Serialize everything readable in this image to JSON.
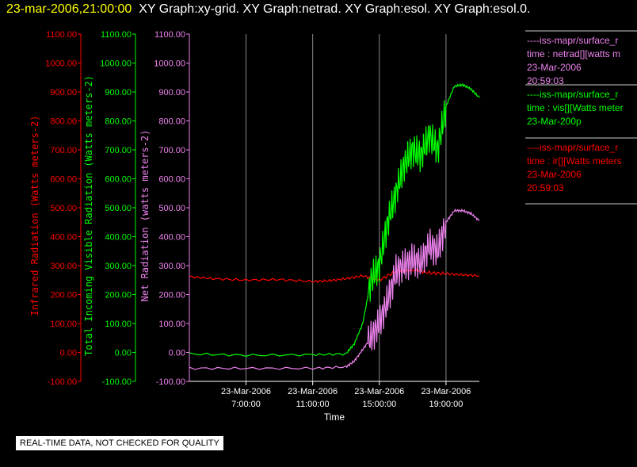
{
  "title": {
    "timestamp": "23-mar-2006,21:00:00",
    "graphs": "XY Graph:xy-grid.  XY Graph:netrad.  XY Graph:esol.  XY Graph:esol.0."
  },
  "colors": {
    "red": "#ff0000",
    "green": "#00ff00",
    "violet": "#ee82ee",
    "grid": "#ffffff"
  },
  "chart_data": {
    "type": "line",
    "xlabel": "Time",
    "x_ticks": [
      {
        "line1": "23-Mar-2006",
        "line2": "7:00:00",
        "hour": 7
      },
      {
        "line1": "23-Mar-2006",
        "line2": "11:00:00",
        "hour": 11
      },
      {
        "line1": "23-Mar-2006",
        "line2": "15:00:00",
        "hour": 15
      },
      {
        "line1": "23-Mar-2006",
        "line2": "19:00:00",
        "hour": 19
      }
    ],
    "xlim_hours": [
      3.6,
      21.0
    ],
    "y_axes": [
      {
        "label": "Infrared Radiation (Watts meters-2)",
        "color": "#ff0000",
        "ylim": [
          -100,
          1100
        ]
      },
      {
        "label": "Total Incoming Visible Radiation (Watts meters-2)",
        "color": "#00ff00",
        "ylim": [
          -100,
          1100
        ]
      },
      {
        "label": "Net Radiation (watts meters-2)",
        "color": "#ee82ee",
        "ylim": [
          -100,
          1100
        ]
      }
    ],
    "y_ticks": [
      "1100.00",
      "1000.00",
      "900.00",
      "800.00",
      "700.00",
      "600.00",
      "500.00",
      "400.00",
      "300.00",
      "200.00",
      "100.00",
      "0.00",
      "-100.00"
    ],
    "y_tick_values": [
      1100,
      1000,
      900,
      800,
      700,
      600,
      500,
      400,
      300,
      200,
      100,
      0,
      -100
    ],
    "series": [
      {
        "color": "#ff0000",
        "x": [
          3.6,
          5,
          7,
          9,
          11,
          12,
          13,
          14,
          15,
          16,
          17,
          18,
          19,
          20,
          21
        ],
        "y": [
          262,
          255,
          250,
          252,
          245,
          248,
          255,
          265,
          250,
          280,
          285,
          275,
          272,
          268,
          265
        ]
      },
      {
        "color": "#00ff00",
        "x": [
          3.6,
          7,
          11,
          13,
          13.5,
          14,
          14.5,
          15,
          15.5,
          16,
          16.5,
          17,
          17.5,
          18,
          18.5,
          19,
          19.5,
          20,
          20.5,
          21
        ],
        "y": [
          -5,
          -10,
          -8,
          -5,
          30,
          100,
          250,
          300,
          450,
          550,
          650,
          700,
          680,
          750,
          700,
          850,
          920,
          925,
          910,
          880
        ]
      },
      {
        "color": "#ee82ee",
        "x": [
          3.6,
          7,
          11,
          13,
          13.5,
          14,
          14.5,
          15,
          15.5,
          16,
          16.5,
          17,
          17.5,
          18,
          18.5,
          19,
          19.5,
          20,
          20.5,
          21
        ],
        "y": [
          -55,
          -55,
          -55,
          -50,
          -30,
          10,
          50,
          100,
          180,
          280,
          300,
          320,
          310,
          370,
          350,
          450,
          490,
          490,
          480,
          455
        ]
      }
    ]
  },
  "legend": [
    {
      "color": "#ee82ee",
      "lines": [
        "----iss-mapr/surface_r",
        "time : netrad[][watts m",
        "23-Mar-2006",
        "20:59:03"
      ]
    },
    {
      "color": "#00ff00",
      "lines": [
        "----iss-mapr/surface_r",
        "time : vis[][Watts meter",
        "23-Mar-200p"
      ]
    },
    {
      "color": "#ff0000",
      "lines": [
        "----iss-mapr/surface_r",
        "time : ir[][Watts meters",
        "23-Mar-2006",
        "20:59:03"
      ]
    }
  ],
  "disclaimer": "REAL-TIME DATA, NOT CHECKED FOR QUALITY"
}
